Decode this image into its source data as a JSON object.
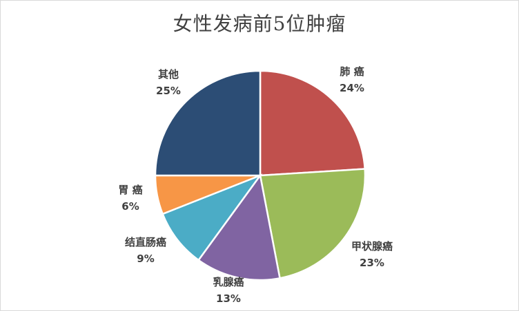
{
  "chart_data": {
    "type": "pie",
    "title": "女性发病前5位肿瘤",
    "slices": [
      {
        "name": "肺 癌",
        "value": 24,
        "label": "24%",
        "color": "#c0504d"
      },
      {
        "name": "甲状腺癌",
        "value": 23,
        "label": "23%",
        "color": "#9bbb59"
      },
      {
        "name": "乳腺癌",
        "value": 13,
        "label": "13%",
        "color": "#8064a2"
      },
      {
        "name": "结直肠癌",
        "value": 9,
        "label": "9%",
        "color": "#4bacc6"
      },
      {
        "name": "胃 癌",
        "value": 6,
        "label": "6%",
        "color": "#f79646"
      },
      {
        "name": "其他",
        "value": 25,
        "label": "25%",
        "color": "#2c4d75"
      }
    ],
    "start_angle": "12 o'clock",
    "direction": "clockwise",
    "legend": "none",
    "data_labels": "outside"
  }
}
